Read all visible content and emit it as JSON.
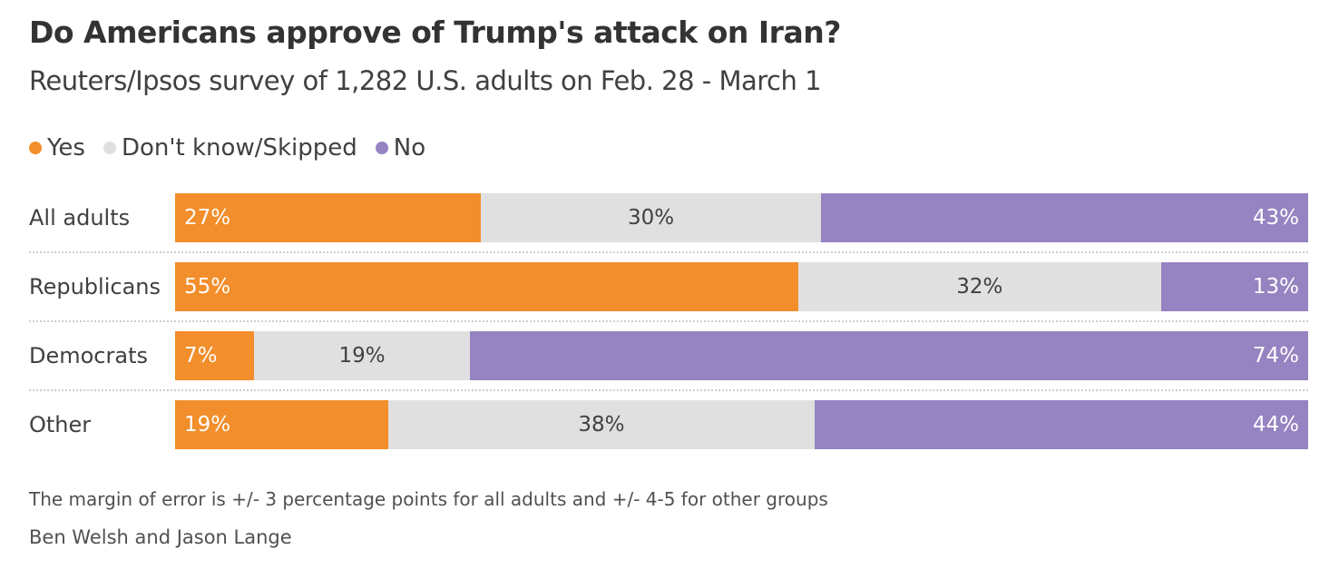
{
  "chart_data": {
    "type": "bar",
    "orientation": "horizontal-stacked-100",
    "title": "Do Americans approve of Trump's attack on Iran?",
    "subtitle": "Reuters/Ipsos survey of 1,282 U.S. adults on Feb. 28 - March 1",
    "legend_position": "top-left",
    "categories": [
      "All adults",
      "Republicans",
      "Democrats",
      "Other"
    ],
    "series": [
      {
        "name": "Yes",
        "color": "#F28E2B",
        "values": [
          27,
          55,
          7,
          19
        ],
        "label_color": "#ffffff",
        "label_align": "left"
      },
      {
        "name": "Don't know/Skipped",
        "color": "#E0E0E0",
        "values": [
          30,
          32,
          19,
          38
        ],
        "label_color": "#404040",
        "label_align": "center"
      },
      {
        "name": "No",
        "color": "#9683C1",
        "values": [
          43,
          13,
          74,
          44
        ],
        "label_color": "#ffffff",
        "label_align": "right"
      }
    ],
    "value_suffix": "%",
    "note": "The margin of error is +/- 3 percentage points for all adults and +/- 4-5 for other groups",
    "credit": "Ben Welsh and Jason Lange"
  }
}
